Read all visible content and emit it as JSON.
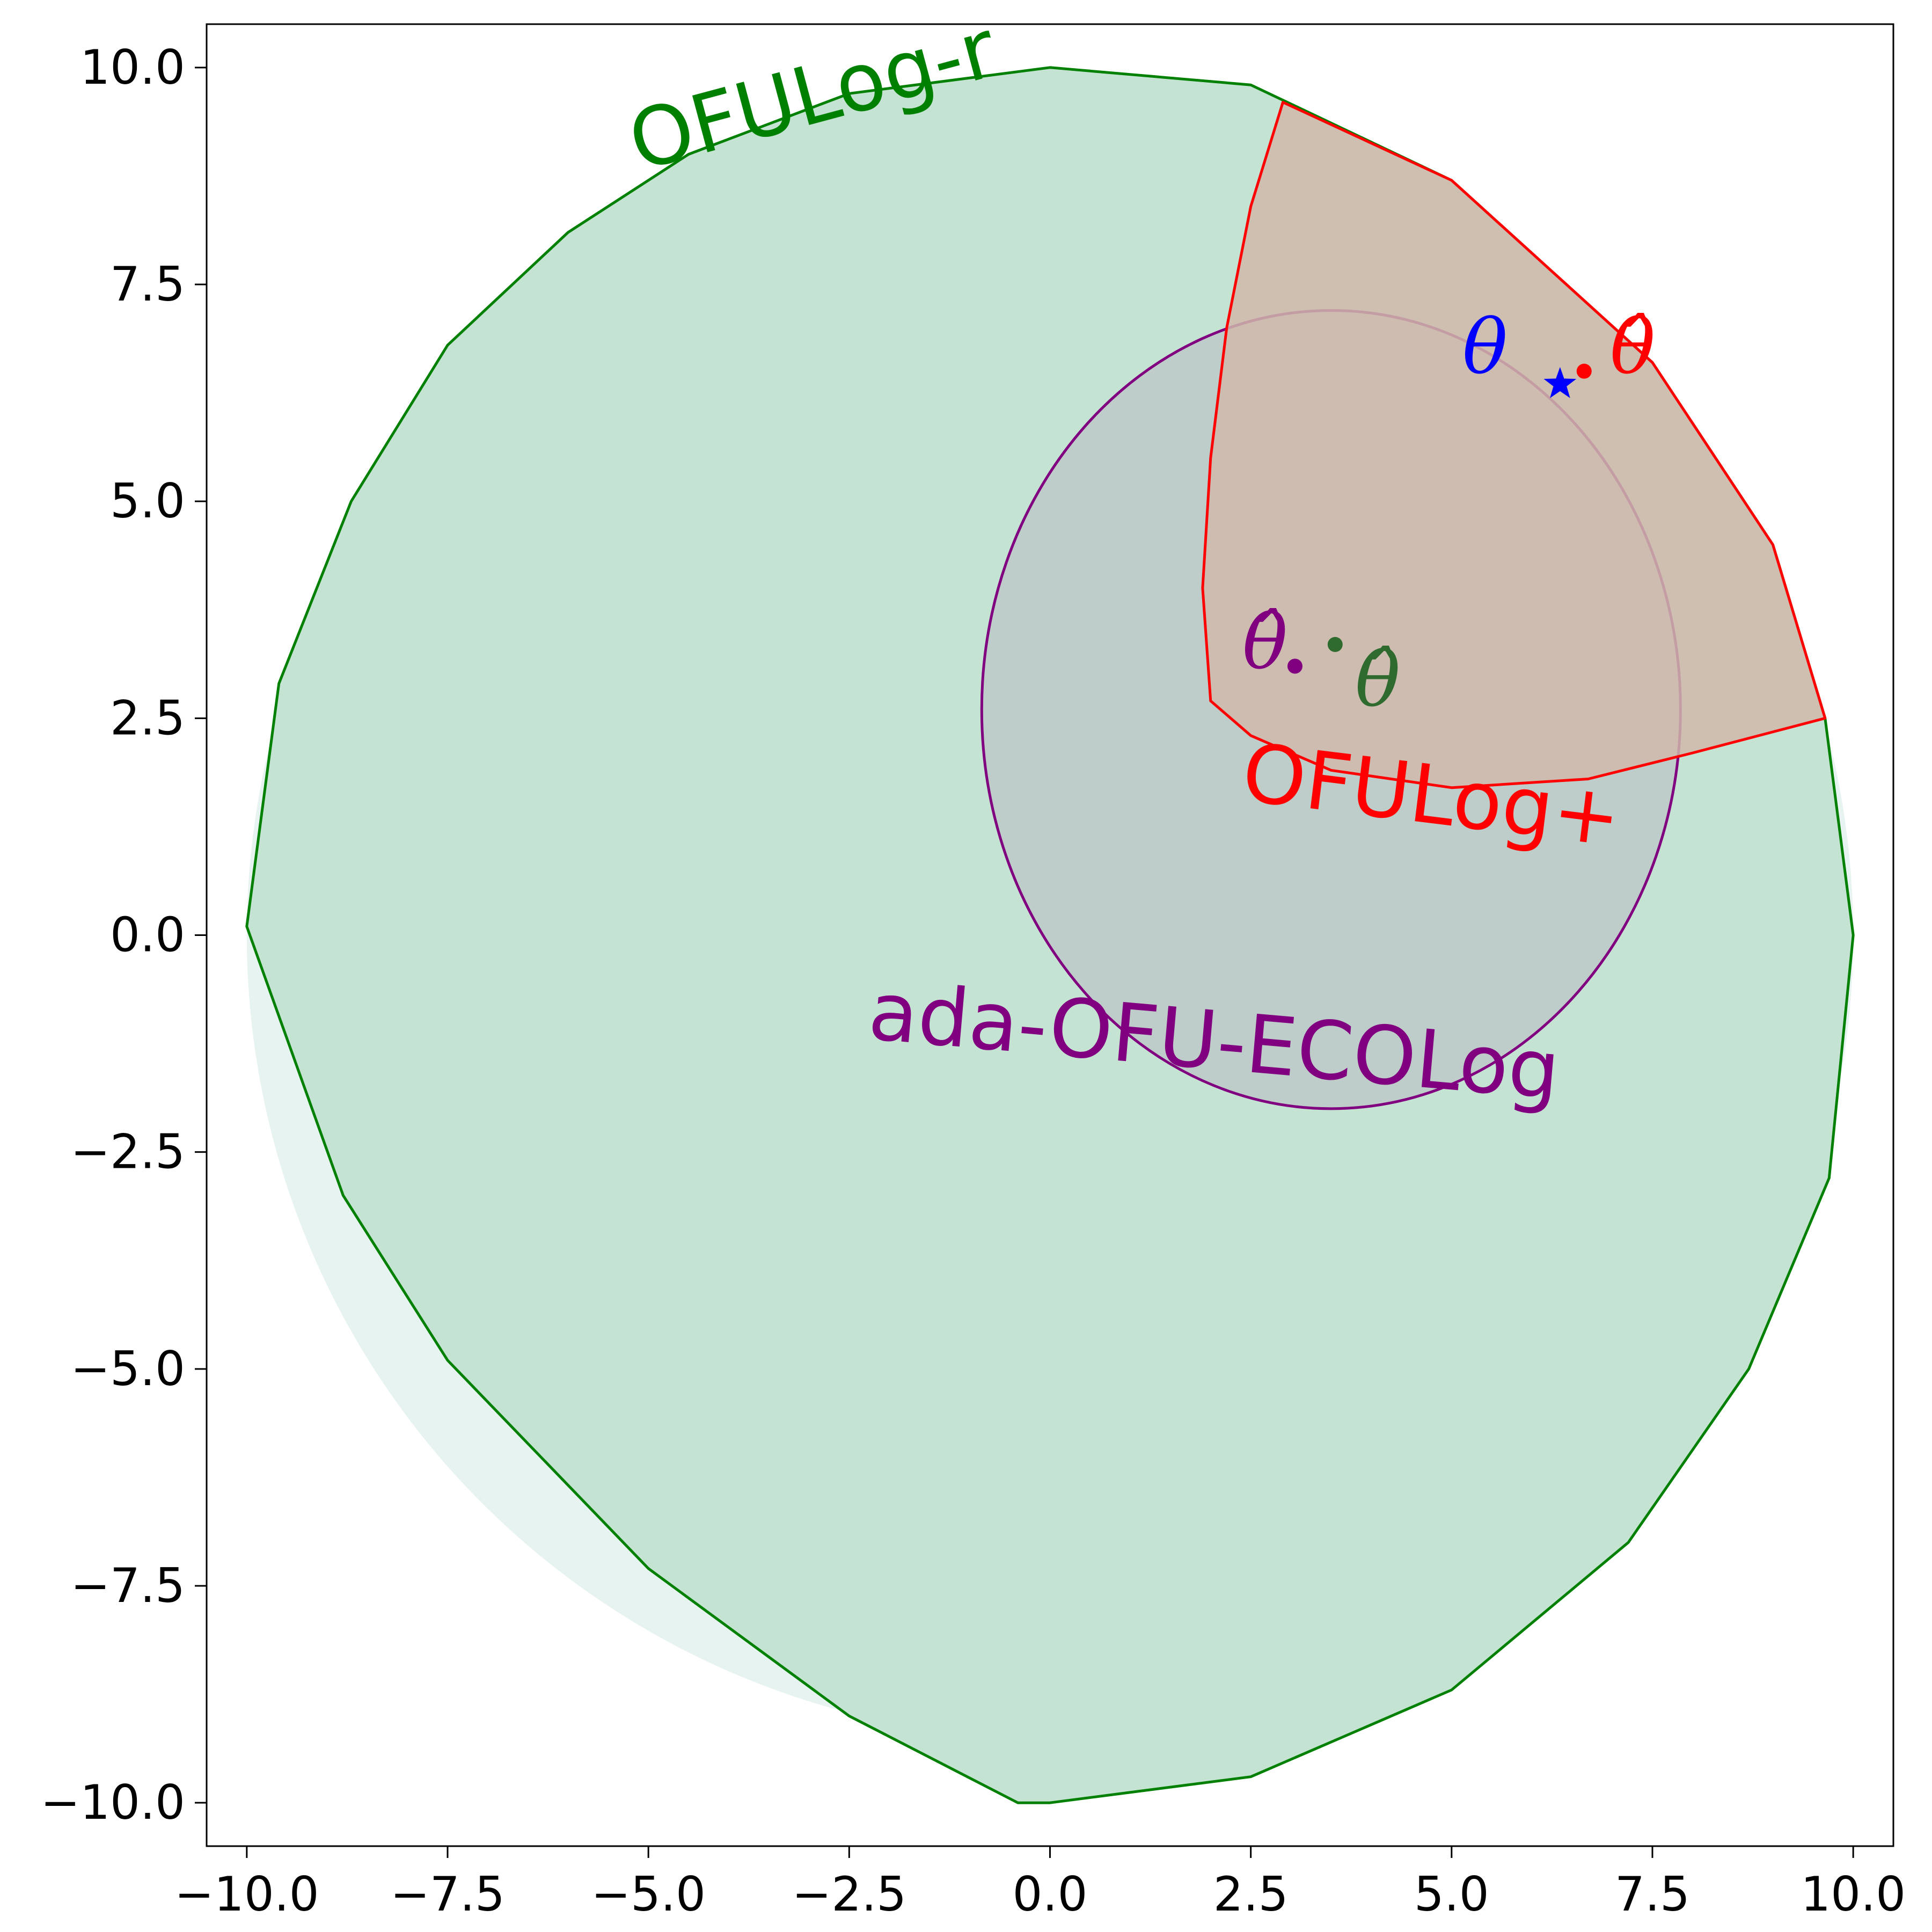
{
  "chart_data": {
    "type": "scatter",
    "title": "",
    "xlabel": "",
    "ylabel": "",
    "xlim": [
      -10.5,
      10.5
    ],
    "ylim": [
      -10.5,
      10.5
    ],
    "x_ticks": [
      -10.0,
      -7.5,
      -5.0,
      -2.5,
      0.0,
      2.5,
      5.0,
      7.5,
      10.0
    ],
    "x_tick_labels": [
      "−10.0",
      "−7.5",
      "−5.0",
      "−2.5",
      "0.0",
      "2.5",
      "5.0",
      "7.5",
      "10.0"
    ],
    "y_ticks": [
      -10.0,
      -7.5,
      -5.0,
      -2.5,
      0.0,
      2.5,
      5.0,
      7.5,
      10.0
    ],
    "y_tick_labels": [
      "−10.0",
      "−7.5",
      "−5.0",
      "−2.5",
      "0.0",
      "2.5",
      "5.0",
      "7.5",
      "10.0"
    ],
    "grid": false,
    "regions": [
      {
        "name": "OFULog-r",
        "label": "OFULog-r",
        "color": "#008000",
        "fill": "#c5e3d3",
        "boundary": [
          [
            -10.0,
            0.1
          ],
          [
            -9.6,
            2.9
          ],
          [
            -8.7,
            5.0
          ],
          [
            -7.5,
            6.8
          ],
          [
            -6.0,
            8.1
          ],
          [
            -4.5,
            9.0
          ],
          [
            -2.5,
            9.7
          ],
          [
            0.0,
            10.0
          ],
          [
            2.5,
            9.8
          ],
          [
            5.0,
            8.7
          ],
          [
            7.5,
            6.6
          ],
          [
            9.0,
            4.5
          ],
          [
            9.65,
            2.5
          ],
          [
            10.0,
            0.0
          ],
          [
            9.7,
            -2.8
          ],
          [
            8.7,
            -5.0
          ],
          [
            7.2,
            -7.0
          ],
          [
            5.0,
            -8.7
          ],
          [
            2.5,
            -9.7
          ],
          [
            0.0,
            -10.0
          ],
          [
            -0.4,
            -10.0
          ],
          [
            -2.5,
            -9.0
          ],
          [
            -5.0,
            -7.3
          ],
          [
            -7.5,
            -4.9
          ],
          [
            -8.8,
            -3.0
          ],
          [
            -10.0,
            0.1
          ]
        ]
      },
      {
        "name": "outer-disk",
        "color": "#e6f3f0",
        "center": [
          0.0,
          0.0
        ],
        "radius": 10.0
      },
      {
        "name": "ada-OFU-ECOLog",
        "label": "ada-OFU-ECOLog",
        "color": "#800080",
        "fill": "#bccac8",
        "center": [
          3.5,
          2.6
        ],
        "radius_x": 4.35,
        "radius_y": 4.6
      },
      {
        "name": "OFULog+",
        "label": "OFULog+",
        "color": "#ff0000",
        "fill": "#d0b8aa",
        "boundary": [
          [
            2.0,
            2.7
          ],
          [
            1.9,
            4.0
          ],
          [
            2.0,
            5.5
          ],
          [
            2.2,
            7.0
          ],
          [
            2.5,
            8.4
          ],
          [
            2.9,
            9.6
          ],
          [
            5.0,
            8.7
          ],
          [
            7.5,
            6.6
          ],
          [
            9.0,
            4.5
          ],
          [
            9.65,
            2.5
          ],
          [
            8.0,
            2.1
          ],
          [
            6.7,
            1.8
          ],
          [
            5.0,
            1.7
          ],
          [
            3.5,
            1.9
          ],
          [
            2.5,
            2.3
          ],
          [
            2.0,
            2.7
          ]
        ]
      }
    ],
    "points": [
      {
        "name": "theta-star",
        "label": "θ",
        "x": 6.35,
        "y": 6.35,
        "marker": "star",
        "color": "#0000ff"
      },
      {
        "name": "theta-hat-OFULog+",
        "label": "θ̂",
        "x": 6.65,
        "y": 6.5,
        "marker": "dot",
        "color": "#ff0000"
      },
      {
        "name": "theta-hat-ada-OFU-ECOLog",
        "label": "θ̂",
        "x": 3.05,
        "y": 3.1,
        "marker": "dot",
        "color": "#800080"
      },
      {
        "name": "theta-hat-OFULog-r",
        "label": "θ̂",
        "x": 3.55,
        "y": 3.35,
        "marker": "dot",
        "color": "#2f6a2f"
      }
    ]
  }
}
